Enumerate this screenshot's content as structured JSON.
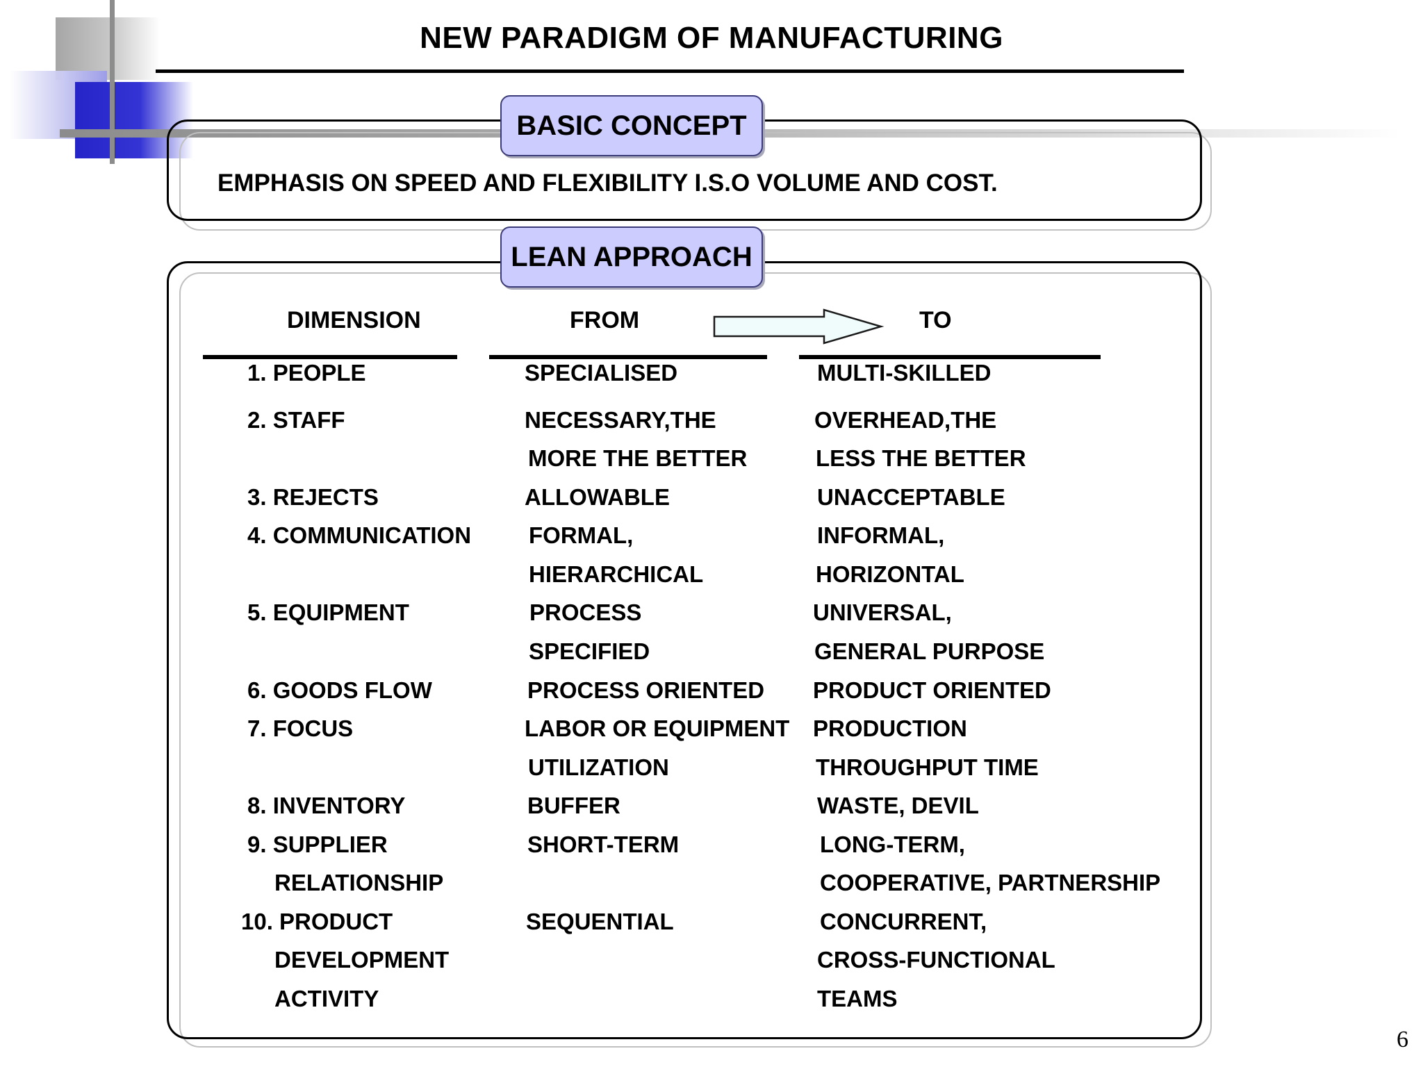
{
  "slide": {
    "title": "NEW PARADIGM OF MANUFACTURING",
    "page_number": "6"
  },
  "basic_concept": {
    "label": "BASIC CONCEPT",
    "text": "EMPHASIS ON SPEED AND FLEXIBILITY I.S.O VOLUME AND COST."
  },
  "lean_approach": {
    "label": "LEAN APPROACH",
    "headers": {
      "dimension": "DIMENSION",
      "from": "FROM",
      "to": "TO"
    },
    "arrow_icon": "right-arrow-icon",
    "rows": [
      {
        "dimension": [
          "1. PEOPLE"
        ],
        "from": [
          "SPECIALISED"
        ],
        "to": [
          "MULTI-SKILLED"
        ]
      },
      {
        "dimension": [
          "2. STAFF"
        ],
        "from": [
          "NECESSARY,THE",
          "MORE THE BETTER"
        ],
        "to": [
          "OVERHEAD,THE",
          "LESS THE BETTER"
        ]
      },
      {
        "dimension": [
          "3. REJECTS"
        ],
        "from": [
          "ALLOWABLE"
        ],
        "to": [
          "UNACCEPTABLE"
        ]
      },
      {
        "dimension": [
          "4. COMMUNICATION"
        ],
        "from": [
          "FORMAL,",
          "HIERARCHICAL"
        ],
        "to": [
          "INFORMAL,",
          "HORIZONTAL"
        ]
      },
      {
        "dimension": [
          "5. EQUIPMENT"
        ],
        "from": [
          "PROCESS",
          "SPECIFIED"
        ],
        "to": [
          "UNIVERSAL,",
          "GENERAL PURPOSE"
        ]
      },
      {
        "dimension": [
          "6. GOODS FLOW"
        ],
        "from": [
          "PROCESS ORIENTED"
        ],
        "to": [
          "PRODUCT ORIENTED"
        ]
      },
      {
        "dimension": [
          "7. FOCUS"
        ],
        "from": [
          "LABOR OR EQUIPMENT",
          "UTILIZATION"
        ],
        "to": [
          "PRODUCTION",
          "THROUGHPUT TIME"
        ]
      },
      {
        "dimension": [
          "8. INVENTORY"
        ],
        "from": [
          "BUFFER"
        ],
        "to": [
          "WASTE, DEVIL"
        ]
      },
      {
        "dimension": [
          "9. SUPPLIER",
          "RELATIONSHIP"
        ],
        "from": [
          "SHORT-TERM"
        ],
        "to": [
          "LONG-TERM,",
          "COOPERATIVE, PARTNERSHIP"
        ]
      },
      {
        "dimension": [
          "10. PRODUCT",
          "DEVELOPMENT",
          "ACTIVITY"
        ],
        "from": [
          "SEQUENTIAL"
        ],
        "to": [
          "CONCURRENT,",
          "CROSS-FUNCTIONAL",
          "TEAMS"
        ]
      }
    ]
  }
}
